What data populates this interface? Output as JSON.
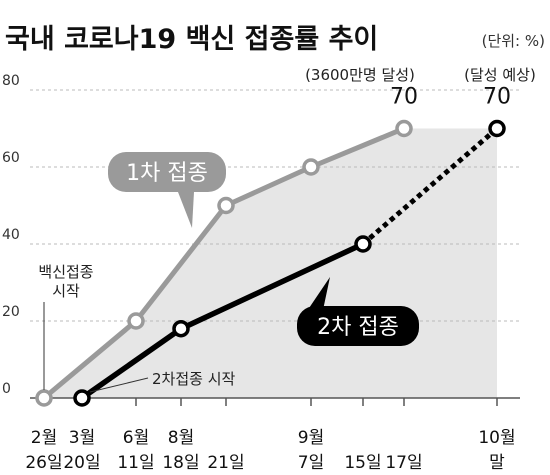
{
  "chart_data": {
    "type": "line",
    "title": "국내 코로나19 백신 접종률 추이",
    "unit": "(단위: %)",
    "ylim": [
      0,
      80
    ],
    "yticks": [
      "0",
      "20",
      "40",
      "60",
      "80"
    ],
    "x": [
      {
        "month": "2월",
        "day": "26일"
      },
      {
        "month": "3월",
        "day": "20일"
      },
      {
        "month": "6월",
        "day": "11일"
      },
      {
        "month": "8월",
        "day": "18일"
      },
      {
        "month": "",
        "day": "21일"
      },
      {
        "month": "9월",
        "day": "7일"
      },
      {
        "month": "",
        "day": "15일"
      },
      {
        "month": "",
        "day": "17일"
      },
      {
        "month": "10월",
        "day": "말"
      }
    ],
    "series": [
      {
        "name": "1차 접종",
        "color": "#9a9a9a",
        "points": [
          [
            0,
            0
          ],
          [
            2,
            20
          ],
          [
            4,
            50
          ],
          [
            5,
            60
          ],
          [
            7,
            70
          ]
        ]
      },
      {
        "name": "2차 접종",
        "color": "#000000",
        "points": [
          [
            1,
            0
          ],
          [
            3,
            18
          ],
          [
            6,
            40
          ]
        ],
        "projection": [
          [
            6,
            40
          ],
          [
            8,
            70
          ]
        ]
      }
    ],
    "data_labels": [
      {
        "text": "70",
        "series": 0,
        "point": [
          7,
          70
        ]
      },
      {
        "text": "70",
        "series": 1,
        "point": [
          8,
          70
        ]
      }
    ],
    "top_notes": [
      "(3600만명 달성)",
      "(달성 예상)"
    ],
    "annotations": {
      "first_start": "백신접종\n시작",
      "second_start": "2차접종 시작"
    },
    "grid": true
  }
}
